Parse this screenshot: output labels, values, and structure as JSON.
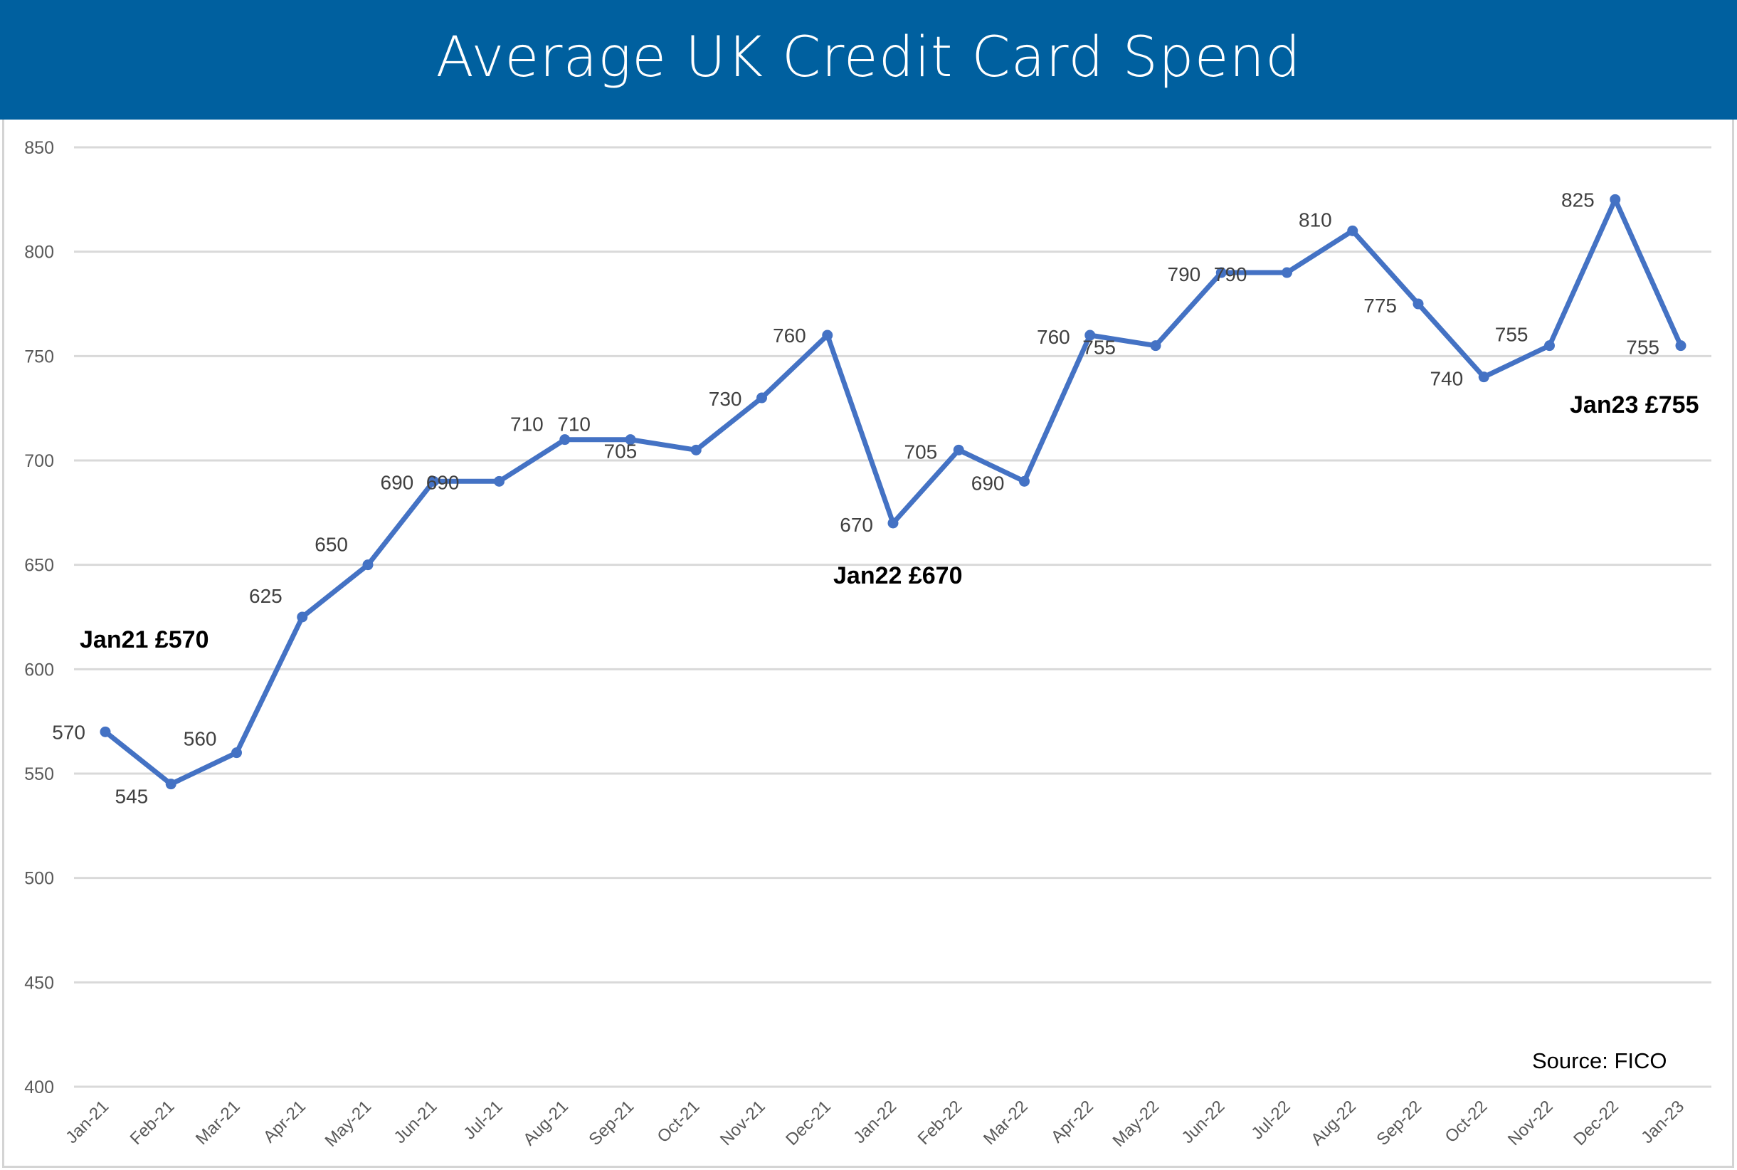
{
  "header": {
    "title": "Average UK Credit Card Spend",
    "background": "#00609F",
    "text_color": "#FFFFFF"
  },
  "chart_data": {
    "type": "line",
    "title": "Average UK Credit Card Spend",
    "xlabel": "",
    "ylabel": "",
    "ylim": [
      400,
      850
    ],
    "yticks": [
      400,
      450,
      500,
      550,
      600,
      650,
      700,
      750,
      800,
      850
    ],
    "grid": true,
    "legend": null,
    "line_color": "#4472C4",
    "categories": [
      "Jan-21",
      "Feb-21",
      "Mar-21",
      "Apr-21",
      "May-21",
      "Jun-21",
      "Jul-21",
      "Aug-21",
      "Sep-21",
      "Oct-21",
      "Nov-21",
      "Dec-21",
      "Jan-22",
      "Feb-22",
      "Mar-22",
      "Apr-22",
      "May-22",
      "Jun-22",
      "Jul-22",
      "Aug-22",
      "Sep-22",
      "Oct-22",
      "Nov-22",
      "Dec-22",
      "Jan-23"
    ],
    "series": [
      {
        "name": "Average UK Credit Card Spend",
        "values": [
          570,
          545,
          560,
          625,
          650,
          690,
          690,
          710,
          710,
          705,
          730,
          760,
          670,
          705,
          690,
          760,
          755,
          790,
          790,
          810,
          775,
          740,
          755,
          825,
          755
        ]
      }
    ],
    "annotations": [
      {
        "text": "Jan21 £570",
        "category": "Jan-21"
      },
      {
        "text": "Jan22 £670",
        "category": "Jan-22"
      },
      {
        "text": "Jan23 £755",
        "category": "Jan-23"
      }
    ],
    "source": "Source: FICO"
  }
}
